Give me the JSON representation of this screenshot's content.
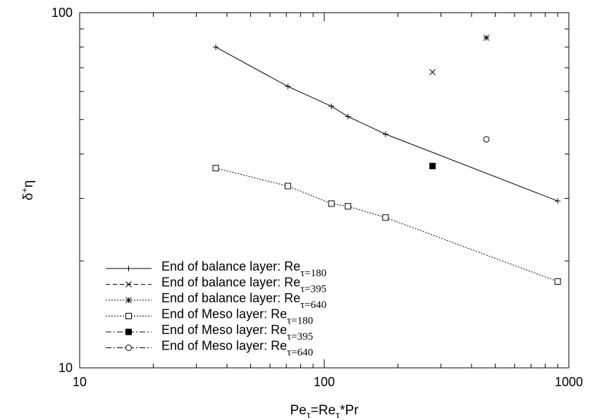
{
  "chart_data": {
    "type": "line",
    "x_scale": "log",
    "y_scale": "log",
    "xlim": [
      10,
      1000
    ],
    "ylim": [
      10,
      100
    ],
    "x_ticks": [
      10,
      100,
      1000
    ],
    "y_ticks": [
      10,
      100
    ],
    "x_tick_labels": [
      "10",
      "100",
      "1000"
    ],
    "y_tick_labels": [
      "10",
      "100"
    ],
    "xlabel": {
      "main": "Pe",
      "sub1": "τ",
      "middle": "=Re",
      "sub2": "τ",
      "tail": "*Pr"
    },
    "ylabel": {
      "main": "δ",
      "sup": "+",
      "tail": "η"
    },
    "grid": false,
    "legend_position": "bottom-left",
    "series": [
      {
        "name": {
          "text": "End of balance layer: Re",
          "sub": "τ=180"
        },
        "marker": "plus",
        "line": "solid",
        "x": [
          36,
          71,
          107,
          125,
          178,
          900
        ],
        "y": [
          80,
          62,
          54.5,
          51,
          45.5,
          29.5
        ]
      },
      {
        "name": {
          "text": "End of balance layer: Re",
          "sub": "τ=395"
        },
        "marker": "cross",
        "line": "dashed",
        "x": [
          277
        ],
        "y": [
          68
        ]
      },
      {
        "name": {
          "text": "End of balance layer: Re",
          "sub": "τ=640"
        },
        "marker": "star",
        "line": "dotted",
        "x": [
          460
        ],
        "y": [
          85
        ]
      },
      {
        "name": {
          "text": "End of Meso layer: Re",
          "sub": "τ=180"
        },
        "marker": "square-open",
        "line": "dotted",
        "x": [
          36,
          71,
          107,
          125,
          178,
          900
        ],
        "y": [
          36.5,
          32.5,
          29,
          28.5,
          26.5,
          17.5
        ]
      },
      {
        "name": {
          "text": "End of Meso layer: Re",
          "sub": "τ=395"
        },
        "marker": "square-filled",
        "line": "dashdot",
        "x": [
          277
        ],
        "y": [
          37
        ]
      },
      {
        "name": {
          "text": "End of Meso layer: Re",
          "sub": "τ=640"
        },
        "marker": "circle-open",
        "line": "dashdot",
        "x": [
          460
        ],
        "y": [
          44
        ]
      }
    ]
  }
}
